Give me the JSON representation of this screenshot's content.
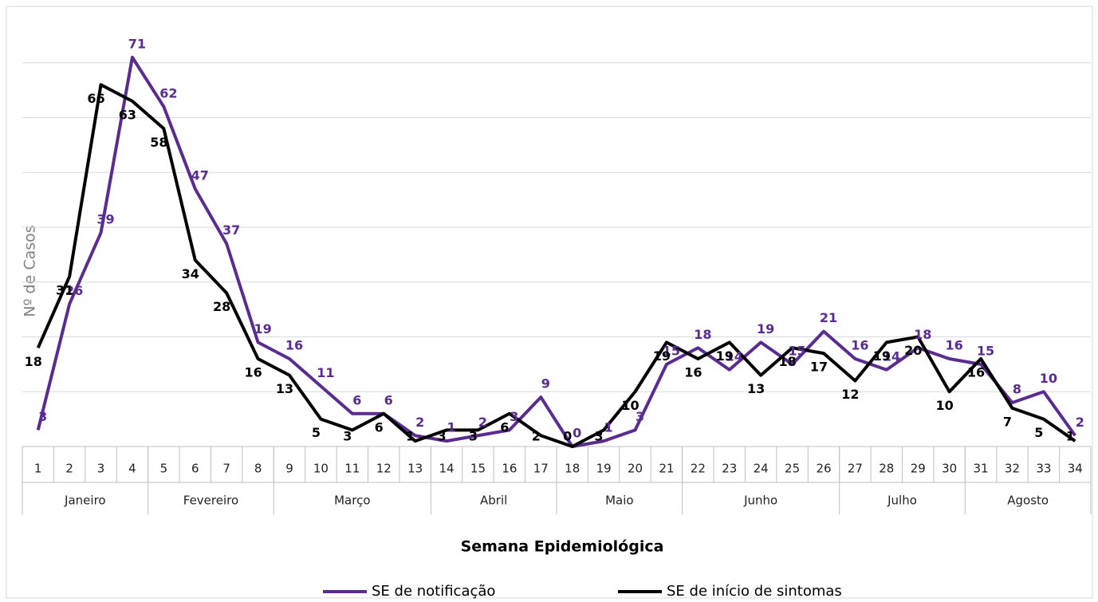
{
  "chart_data": {
    "type": "line",
    "x_label": "Semana Epidemiológica",
    "y_label": "Nº de Casos",
    "categories": [
      1,
      2,
      3,
      4,
      5,
      6,
      7,
      8,
      9,
      10,
      11,
      12,
      13,
      14,
      15,
      16,
      17,
      18,
      19,
      20,
      21,
      22,
      23,
      24,
      25,
      26,
      27,
      28,
      29,
      30,
      31,
      32,
      33,
      34
    ],
    "groups": [
      {
        "name": "Janeiro",
        "from": 1,
        "to": 4
      },
      {
        "name": "Fevereiro",
        "from": 5,
        "to": 8
      },
      {
        "name": "Março",
        "from": 9,
        "to": 13
      },
      {
        "name": "Abril",
        "from": 14,
        "to": 17
      },
      {
        "name": "Maio",
        "from": 18,
        "to": 21
      },
      {
        "name": "Junho",
        "from": 22,
        "to": 26
      },
      {
        "name": "Julho",
        "from": 27,
        "to": 30
      },
      {
        "name": "Agosto",
        "from": 31,
        "to": 34
      }
    ],
    "series": [
      {
        "name": "SE de notificação",
        "color": "#5b2c8f",
        "values": [
          3,
          26,
          39,
          71,
          62,
          47,
          37,
          19,
          16,
          11,
          6,
          6,
          2,
          1,
          2,
          3,
          9,
          0,
          1,
          3,
          15,
          18,
          14,
          19,
          15,
          21,
          16,
          14,
          18,
          16,
          15,
          8,
          10,
          2
        ]
      },
      {
        "name": "SE de início de sintomas",
        "color": "#000000",
        "values": [
          18,
          31,
          66,
          63,
          58,
          34,
          28,
          16,
          13,
          5,
          3,
          6,
          1,
          3,
          3,
          6,
          2,
          0,
          3,
          10,
          19,
          16,
          19,
          13,
          18,
          17,
          12,
          19,
          20,
          10,
          16,
          7,
          5,
          1
        ]
      }
    ],
    "ylim": [
      0,
      80
    ],
    "yticks": [
      0,
      10,
      20,
      30,
      40,
      50,
      60,
      70
    ],
    "grid": true,
    "legend": "bottom"
  }
}
